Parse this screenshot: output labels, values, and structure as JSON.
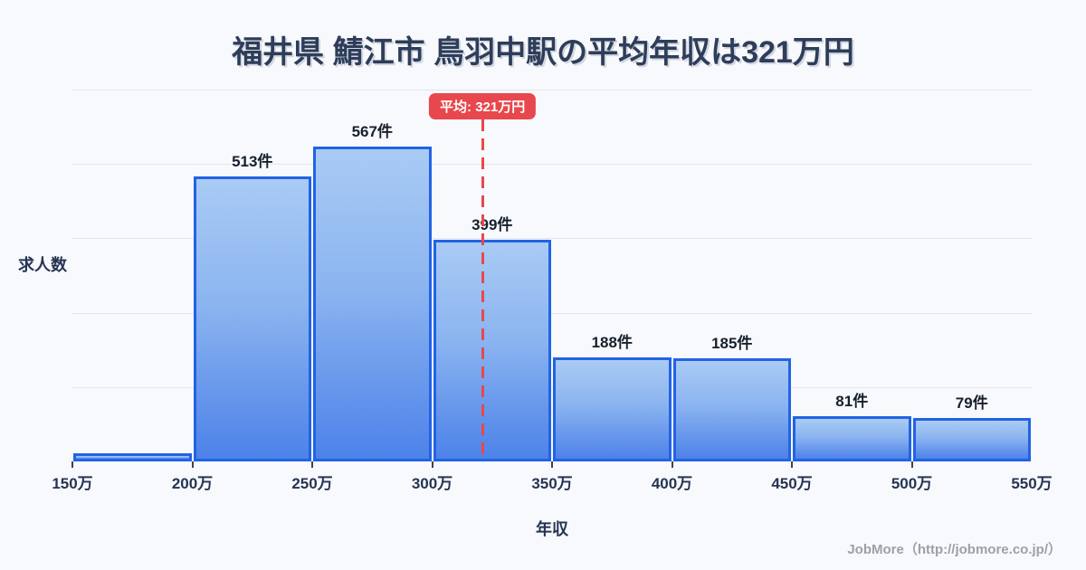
{
  "title": "福井県 鯖江市 鳥羽中駅の平均年収は321万円",
  "chart_data": {
    "type": "bar",
    "subtype": "histogram",
    "title": "福井県 鯖江市 鳥羽中駅の平均年収は321万円",
    "xlabel": "年収",
    "ylabel": "求人数",
    "bin_edges_man_yen": [
      150,
      200,
      250,
      300,
      350,
      400,
      450,
      500,
      550
    ],
    "x_tick_labels": [
      "150万",
      "200万",
      "250万",
      "300万",
      "350万",
      "400万",
      "450万",
      "500万",
      "550万"
    ],
    "categories": [
      "150万-200万",
      "200万-250万",
      "250万-300万",
      "300万-350万",
      "350万-400万",
      "400万-450万",
      "450万-500万",
      "500万-550万"
    ],
    "values": [
      15,
      513,
      567,
      399,
      188,
      185,
      81,
      79
    ],
    "bar_labels": [
      "",
      "513件",
      "567件",
      "399件",
      "188件",
      "185件",
      "81件",
      "79件"
    ],
    "first_bar_value_estimated": true,
    "unit": "件",
    "mean_line": {
      "value_man_yen": 321,
      "label": "平均: 321万円",
      "color": "#e8484d",
      "style": "dashed"
    },
    "ylim": [
      0,
      669
    ],
    "grid": "horizontal",
    "gridline_count": 5,
    "legend": "none",
    "colors": {
      "background": "#f8f9fc",
      "bar_gradient_top": "#a9cbf4",
      "bar_gradient_bottom": "#4d82e9",
      "bar_border": "#2263e5",
      "gridline": "#e3e6ef",
      "title_text": "#2e3d59",
      "axis_text": "#253453",
      "value_label_text": "#16202e",
      "mean_red": "#e8484d"
    }
  },
  "footer": {
    "credit": "JobMore（http://jobmore.co.jp/）"
  }
}
